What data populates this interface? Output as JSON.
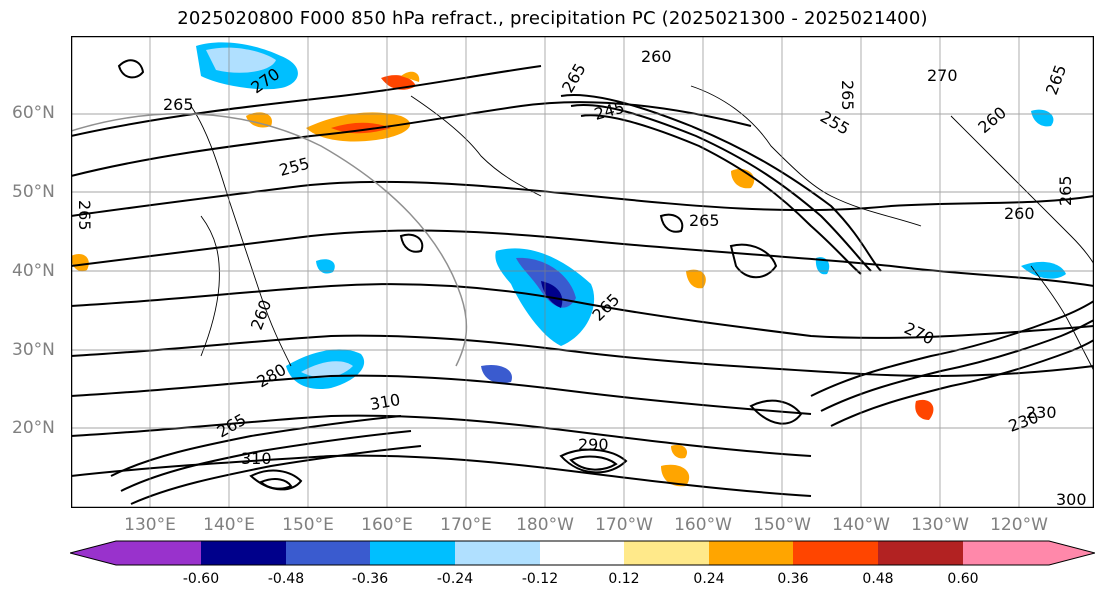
{
  "title": "2025020800 F000 850 hPa refract., precipitation PC (2025021300 - 2025021400)",
  "lat_labels": [
    "60°N",
    "50°N",
    "40°N",
    "30°N",
    "20°N"
  ],
  "lon_labels": [
    "130°E",
    "140°E",
    "150°E",
    "160°E",
    "170°E",
    "180°W",
    "170°W",
    "160°W",
    "150°W",
    "140°W",
    "130°W",
    "120°W"
  ],
  "contour_labels": [
    "265",
    "270",
    "255",
    "265",
    "265",
    "260",
    "245",
    "255",
    "265",
    "270",
    "265",
    "260",
    "265",
    "265",
    "260",
    "260",
    "265",
    "270",
    "280",
    "310",
    "265",
    "310",
    "290",
    "230",
    "230",
    "300"
  ],
  "colorbar": {
    "ticks": [
      "-0.60",
      "-0.48",
      "-0.36",
      "-0.24",
      "-0.12",
      "0.12",
      "0.24",
      "0.36",
      "0.48",
      "0.60"
    ],
    "colors": [
      "#9932cc",
      "#00008b",
      "#3a5bcf",
      "#00bfff",
      "#b0e0ff",
      "#ffffff",
      "#ffe98a",
      "#ffa500",
      "#ff4500",
      "#b22222",
      "#ff88aa",
      "#ff88aa"
    ]
  }
}
